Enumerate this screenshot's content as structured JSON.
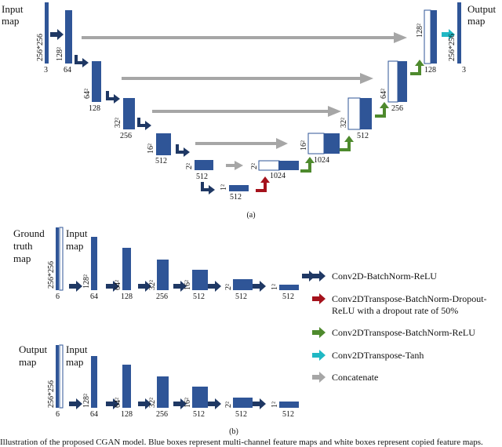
{
  "panel_a": {
    "input_label": [
      "Input",
      "map"
    ],
    "output_label": [
      "Output",
      "map"
    ],
    "caption": "(a)",
    "encoder": [
      {
        "dim": "256*256",
        "channels": "3"
      },
      {
        "dim": "128²",
        "channels": "64"
      },
      {
        "dim": "64²",
        "channels": "128"
      },
      {
        "dim": "32²",
        "channels": "256"
      },
      {
        "dim": "16²",
        "channels": "512"
      },
      {
        "dim": "2²",
        "channels": "512"
      },
      {
        "dim": "1²",
        "channels": "512"
      }
    ],
    "decoder": [
      {
        "dim": "2²",
        "channels": "1024"
      },
      {
        "dim": "16²",
        "channels": "1024"
      },
      {
        "dim": "32²",
        "channels": "512"
      },
      {
        "dim": "64²",
        "channels": "256"
      },
      {
        "dim": "128²",
        "channels": "128"
      },
      {
        "dim": "256*256",
        "channels": "3"
      }
    ]
  },
  "panel_b": {
    "caption": "(b)",
    "rows": [
      {
        "side_label": [
          "Ground",
          "truth",
          "map"
        ],
        "input_label": [
          "Input",
          "map"
        ],
        "first_dim": "256*256",
        "first_channels": "6",
        "layers": [
          {
            "dim": "128²",
            "channels": "64"
          },
          {
            "dim": "64²",
            "channels": "128"
          },
          {
            "dim": "32²",
            "channels": "256"
          },
          {
            "dim": "16²",
            "channels": "512"
          },
          {
            "dim": "2²",
            "channels": "512"
          },
          {
            "dim": "1²",
            "channels": "512"
          }
        ]
      },
      {
        "side_label": [
          "Output",
          "map"
        ],
        "input_label": [
          "Input",
          "map"
        ],
        "first_dim": "256*256",
        "first_channels": "6",
        "layers": [
          {
            "dim": "128²",
            "channels": "64"
          },
          {
            "dim": "64²",
            "channels": "128"
          },
          {
            "dim": "32²",
            "channels": "256"
          },
          {
            "dim": "16²",
            "channels": "512"
          },
          {
            "dim": "2²",
            "channels": "512"
          },
          {
            "dim": "1²",
            "channels": "512"
          }
        ]
      }
    ]
  },
  "legend": [
    {
      "label": [
        "Conv2D-BatchNorm-ReLU"
      ],
      "color": "#1f3864"
    },
    {
      "label": [
        "Conv2DTranspose-BatchNorm-Dropout-",
        "ReLU with a dropout rate of 50%"
      ],
      "color": "#a5121c"
    },
    {
      "label": [
        "Conv2DTranspose-BatchNorm-ReLU"
      ],
      "color": "#4e8a2d"
    },
    {
      "label": [
        "Conv2DTranspose-Tanh"
      ],
      "color": "#20b8c4"
    },
    {
      "label": [
        "Concatenate"
      ],
      "color": "#a6a6a6"
    }
  ],
  "figure_caption": "Illustration of the proposed CGAN model. Blue boxes represent multi-channel feature maps and white boxes represent copied feature maps.",
  "colors": {
    "block": "#2f5597",
    "navy": "#1f3864",
    "red": "#a5121c",
    "green": "#4e8a2d",
    "cyan": "#20b8c4",
    "gray": "#a6a6a6"
  }
}
